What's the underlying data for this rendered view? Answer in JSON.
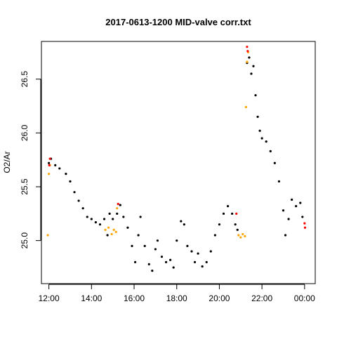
{
  "chart_data": {
    "type": "scatter",
    "title": "2017-0613-1200 MID-valve corr.txt",
    "xlabel": "",
    "ylabel": "O2/Ar",
    "x_ticks": [
      "12:00",
      "14:00",
      "16:00",
      "18:00",
      "20:00",
      "22:00",
      "00:00"
    ],
    "x_tick_hours": [
      12,
      14,
      16,
      18,
      20,
      22,
      24
    ],
    "y_ticks": [
      "25.0",
      "25.5",
      "26.0",
      "26.5"
    ],
    "y_tick_values": [
      25.0,
      25.5,
      26.0,
      26.5
    ],
    "xlim": [
      11.65,
      24.5
    ],
    "ylim": [
      24.6,
      26.85
    ],
    "grid": false,
    "legend": "none",
    "colors": {
      "main": "#000000",
      "flagged_orange": "#ffa500",
      "flagged_red": "#ff0000"
    },
    "series": [
      {
        "color": "#000000",
        "x": [
          12.0,
          12.1,
          12.3,
          12.5,
          12.8,
          13.0,
          13.2,
          13.4,
          13.6,
          13.8,
          14.0,
          14.2,
          14.4,
          14.6,
          14.75,
          14.85,
          15.0,
          15.2,
          15.35,
          15.5,
          15.7,
          15.9,
          16.05,
          16.2,
          16.3,
          16.5,
          16.7,
          16.85,
          17.0,
          17.1,
          17.3,
          17.5,
          17.7,
          17.85,
          18.0,
          18.2,
          18.35,
          18.5,
          18.7,
          18.85,
          19.0,
          19.2,
          19.4,
          19.6,
          19.8,
          20.0,
          20.2,
          20.4,
          20.6,
          20.75,
          20.85,
          21.3,
          21.4,
          21.5,
          21.6,
          21.7,
          21.8,
          21.9,
          22.0,
          22.2,
          22.4,
          22.6,
          22.8,
          23.0,
          23.1,
          23.25,
          23.4,
          23.6,
          23.8,
          23.9
        ],
        "y": [
          25.72,
          25.76,
          25.7,
          25.67,
          25.62,
          25.55,
          25.45,
          25.37,
          25.3,
          25.22,
          25.2,
          25.17,
          25.15,
          25.2,
          25.05,
          25.25,
          25.2,
          25.25,
          25.33,
          25.22,
          25.12,
          24.95,
          24.8,
          25.05,
          25.22,
          24.95,
          24.78,
          24.72,
          24.92,
          25.0,
          24.85,
          24.8,
          24.82,
          24.75,
          25.0,
          25.18,
          25.15,
          24.95,
          24.9,
          24.8,
          24.88,
          24.76,
          24.8,
          24.9,
          25.05,
          25.15,
          25.25,
          25.32,
          25.25,
          25.15,
          25.1,
          26.65,
          26.7,
          26.55,
          26.62,
          26.35,
          26.15,
          26.02,
          25.95,
          25.92,
          25.83,
          25.72,
          25.55,
          25.28,
          25.05,
          25.2,
          25.38,
          25.32,
          25.35,
          25.22
        ]
      },
      {
        "color": "#ffa500",
        "x": [
          11.95,
          12.0,
          12.05,
          14.65,
          14.8,
          14.95,
          15.05,
          15.15,
          15.2,
          20.9,
          21.0,
          21.1,
          21.2,
          21.25,
          21.3,
          21.35
        ],
        "y": [
          25.05,
          25.62,
          25.7,
          25.1,
          25.12,
          25.06,
          25.1,
          25.08,
          25.3,
          25.05,
          25.03,
          25.06,
          25.04,
          26.24,
          26.66,
          26.75
        ]
      },
      {
        "color": "#ff0000",
        "x": [
          12.02,
          12.05,
          15.25,
          20.8,
          21.3,
          21.33,
          24.0,
          24.02
        ],
        "y": [
          25.7,
          25.76,
          25.34,
          25.25,
          26.8,
          26.76,
          25.16,
          25.12
        ]
      }
    ]
  }
}
